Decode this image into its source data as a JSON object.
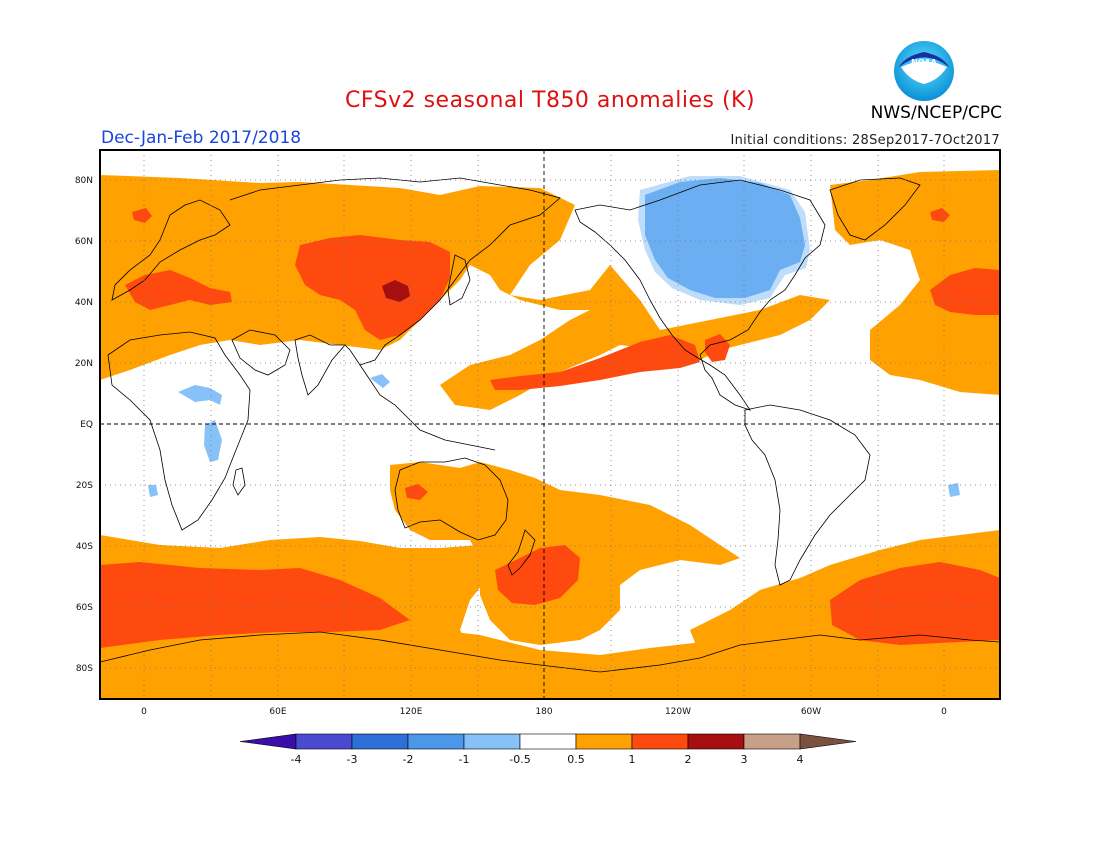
{
  "header": {
    "title": "CFSv2 seasonal T850 anomalies (K)",
    "agency": "NWS/NCEP/CPC",
    "period": "Dec-Jan-Feb 2017/2018",
    "initial_conditions": "Initial conditions: 28Sep2017-7Oct2017",
    "logo_text": "NOAA"
  },
  "map": {
    "lat_ticks": [
      "80N",
      "60N",
      "40N",
      "20N",
      "EQ",
      "20S",
      "40S",
      "60S",
      "80S"
    ],
    "lon_ticks": [
      "0",
      "60E",
      "120E",
      "180",
      "120W",
      "60W",
      "0"
    ]
  },
  "colorbar": {
    "labels": [
      "-4",
      "-3",
      "-2",
      "-1",
      "-0.5",
      "0.5",
      "1",
      "2",
      "3",
      "4"
    ],
    "colors": [
      "#3a0ea8",
      "#4a4ad0",
      "#2f6fd8",
      "#4b97ea",
      "#86c1f7",
      "#ffffff",
      "#ffa100",
      "#ff4a0f",
      "#a50f0f",
      "#c8a08a",
      "#7a5040"
    ]
  }
}
